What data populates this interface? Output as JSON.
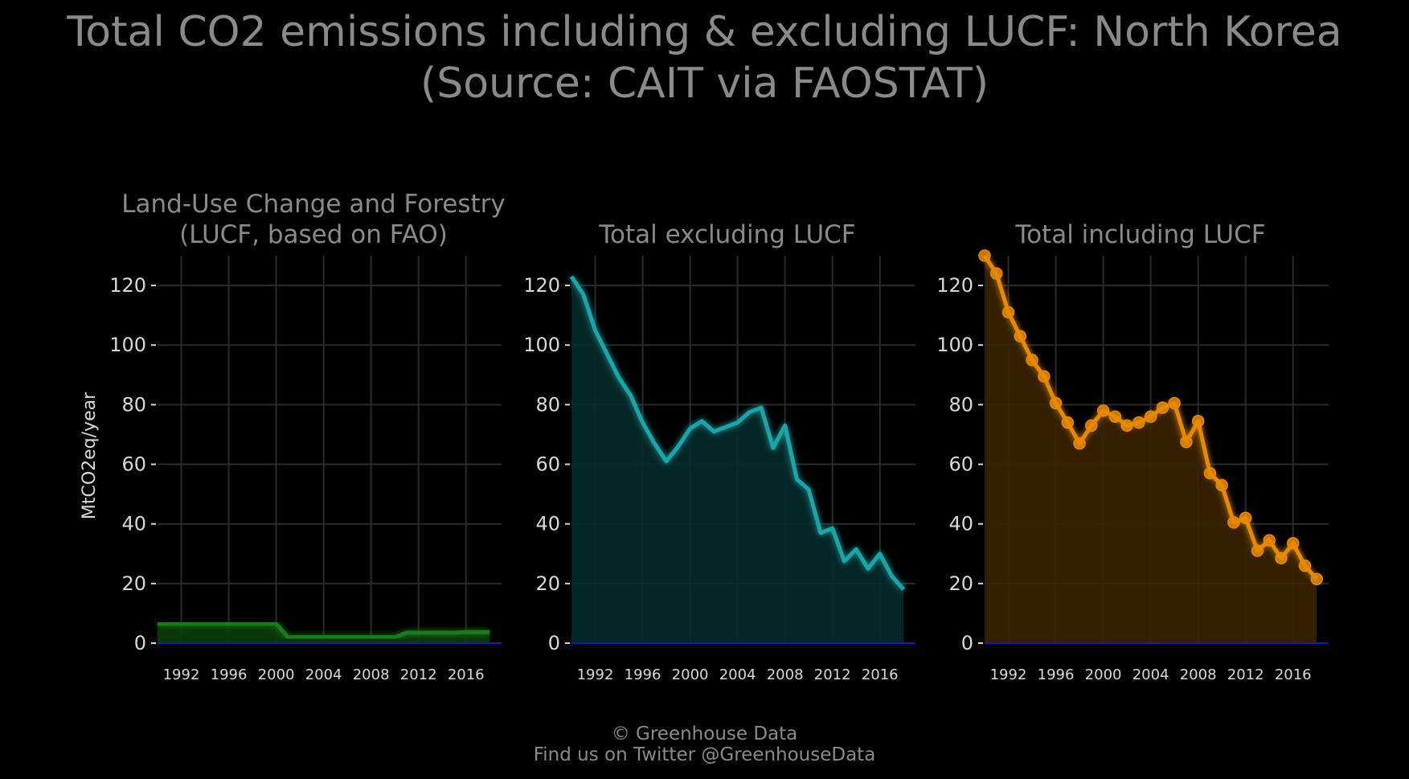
{
  "header": {
    "title_line1": "Total CO2 emissions including & excluding LUCF: North Korea",
    "title_line2": "(Source: CAIT via FAOSTAT)"
  },
  "footer": {
    "line1": "© Greenhouse Data",
    "line2": "Find us on Twitter @GreenhouseData"
  },
  "chart_data": [
    {
      "type": "area",
      "title": [
        "Land-Use Change and Forestry",
        "(LUCF, based on FAO)"
      ],
      "ylabel": "MtCO2eq/year",
      "xlabel": "",
      "color": "#1a7a1a",
      "fill": "#0b3d0b",
      "markers": false,
      "ylim": [
        0,
        130
      ],
      "xlim": [
        1990,
        2019
      ],
      "yticks": [
        0,
        20,
        40,
        60,
        80,
        100,
        120
      ],
      "xticks": [
        1992,
        1996,
        2000,
        2004,
        2008,
        2012,
        2016
      ],
      "grid": true,
      "x": [
        1990,
        1991,
        1992,
        1993,
        1994,
        1995,
        1996,
        1997,
        1998,
        1999,
        2000,
        2001,
        2002,
        2003,
        2004,
        2005,
        2006,
        2007,
        2008,
        2009,
        2010,
        2011,
        2012,
        2013,
        2014,
        2015,
        2016,
        2017,
        2018
      ],
      "values": [
        6.5,
        6.5,
        6.5,
        6.5,
        6.5,
        6.5,
        6.5,
        6.5,
        6.5,
        6.5,
        6.5,
        2,
        2,
        2,
        2,
        2,
        2,
        2,
        2,
        2,
        2,
        3.5,
        3.5,
        3.5,
        3.5,
        3.5,
        3.7,
        3.7,
        3.7
      ]
    },
    {
      "type": "area",
      "title": [
        "Total excluding LUCF"
      ],
      "color": "#1fa5a8",
      "fill": "#062a2a",
      "markers": false,
      "ylim": [
        0,
        130
      ],
      "xlim": [
        1990,
        2019
      ],
      "yticks": [
        0,
        20,
        40,
        60,
        80,
        100,
        120
      ],
      "xticks": [
        1992,
        1996,
        2000,
        2004,
        2008,
        2012,
        2016
      ],
      "grid": true,
      "x": [
        1990,
        1991,
        1992,
        1993,
        1994,
        1995,
        1996,
        1997,
        1998,
        1999,
        2000,
        2001,
        2002,
        2003,
        2004,
        2005,
        2006,
        2007,
        2008,
        2009,
        2010,
        2011,
        2012,
        2013,
        2014,
        2015,
        2016,
        2017,
        2018
      ],
      "values": [
        123,
        117,
        105,
        97,
        89,
        83,
        74,
        67,
        61,
        66,
        72,
        74.5,
        71,
        72.5,
        74,
        77.5,
        79,
        65.5,
        73,
        55,
        51.5,
        37,
        38.5,
        27.5,
        31.5,
        25,
        30,
        22.5,
        18
      ]
    },
    {
      "type": "area",
      "title": [
        "Total including LUCF"
      ],
      "color": "#e68a00",
      "fill": "#3a2400",
      "markers": true,
      "ylim": [
        0,
        130
      ],
      "xlim": [
        1990,
        2019
      ],
      "yticks": [
        0,
        20,
        40,
        60,
        80,
        100,
        120
      ],
      "xticks": [
        1992,
        1996,
        2000,
        2004,
        2008,
        2012,
        2016
      ],
      "grid": true,
      "x": [
        1990,
        1991,
        1992,
        1993,
        1994,
        1995,
        1996,
        1997,
        1998,
        1999,
        2000,
        2001,
        2002,
        2003,
        2004,
        2005,
        2006,
        2007,
        2008,
        2009,
        2010,
        2011,
        2012,
        2013,
        2014,
        2015,
        2016,
        2017,
        2018
      ],
      "values": [
        130,
        124,
        111,
        103,
        95,
        89.5,
        80.5,
        74,
        67,
        73,
        78,
        76,
        73,
        74,
        76,
        79,
        80.5,
        67.5,
        74.5,
        57,
        53,
        40.5,
        42,
        31,
        34.5,
        28.5,
        33.5,
        26,
        21.5
      ]
    }
  ]
}
